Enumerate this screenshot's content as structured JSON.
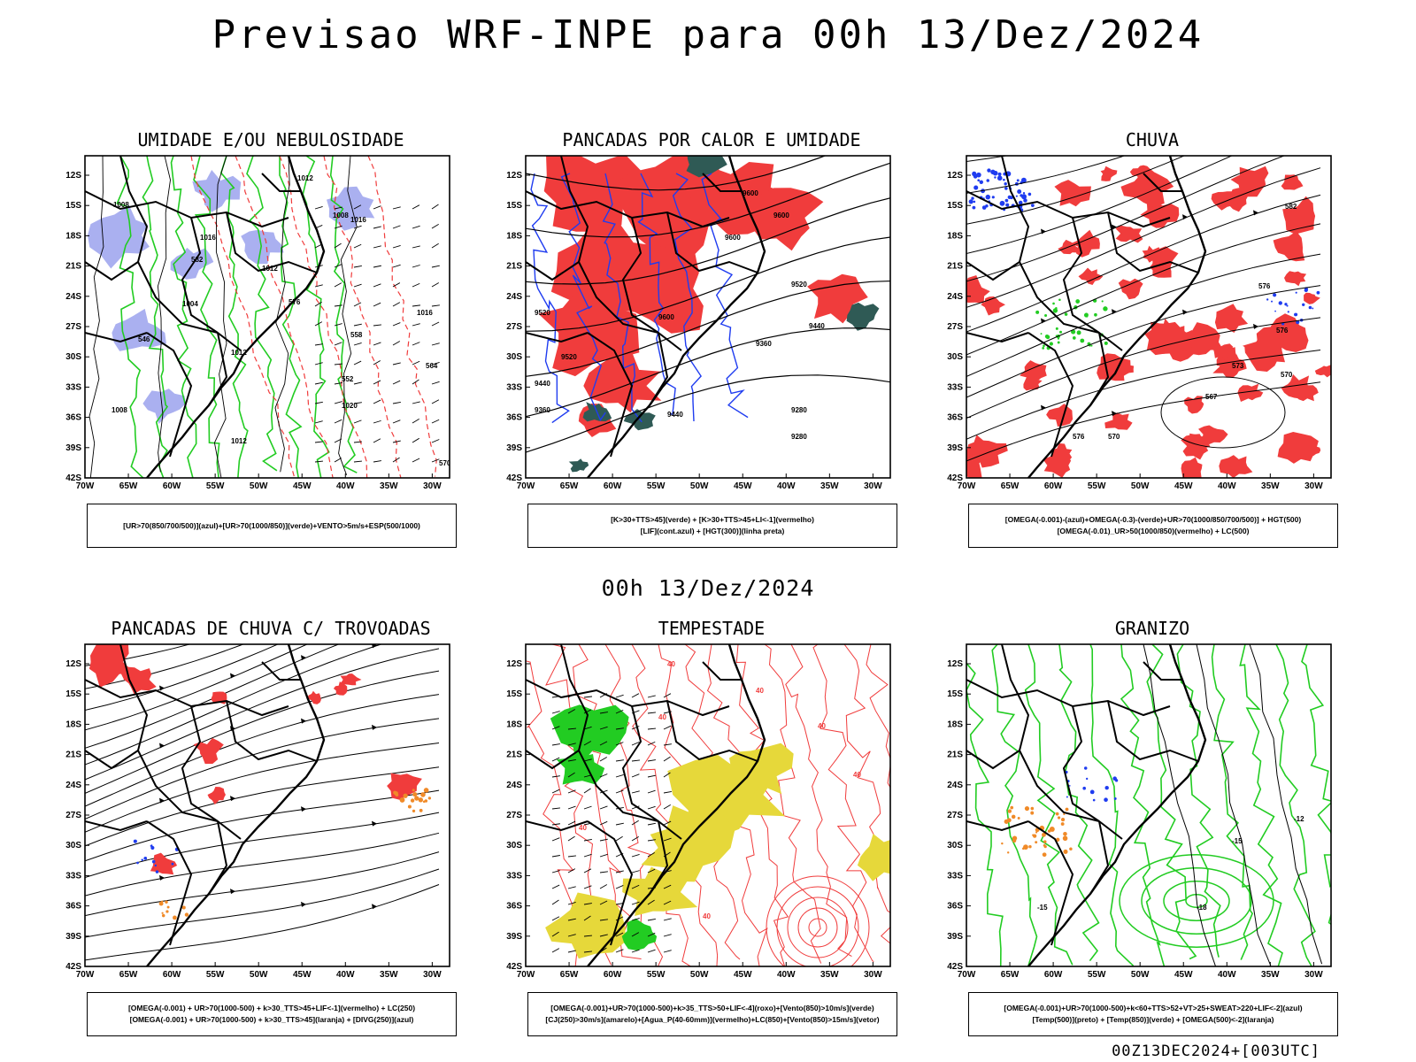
{
  "title": "Previsao WRF-INPE  para 00h 13/Dez/2024",
  "mid_date": "00h 13/Dez/2024",
  "footer": "00Z13DEC2024+[003UTC]",
  "axes": {
    "lat_labels": [
      "12S",
      "15S",
      "18S",
      "21S",
      "24S",
      "27S",
      "30S",
      "33S",
      "36S",
      "39S",
      "42S"
    ],
    "lon_labels": [
      "70W",
      "65W",
      "60W",
      "55W",
      "50W",
      "45W",
      "40W",
      "35W",
      "30W"
    ]
  },
  "colors": {
    "red": "#f03c3c",
    "green": "#22cc22",
    "blue": "#1f3cf0",
    "lavender": "#aab0f0",
    "darkgreen": "#2f5a55",
    "yellow": "#e6d83a",
    "orange": "#f08a28",
    "black": "#000000"
  },
  "panels": [
    {
      "id": "umidade",
      "title": "UMIDADE E/OU NEBULOSIDADE",
      "legend": [
        "[UR>70(850/700/500)](azul)+[UR>70(1000/850)](verde)+VENTO>5m/s+ESP(500/1000)"
      ],
      "labels": [
        "1012",
        "1008",
        "1016",
        "1008",
        "1012",
        "1004",
        "1012",
        "1016",
        "1020",
        "1016",
        "1012",
        "1008",
        "564",
        "570",
        "576",
        "558",
        "552",
        "546",
        "582"
      ]
    },
    {
      "id": "pancadas-calor",
      "title": "PANCADAS POR CALOR E UMIDADE",
      "legend": [
        "[K>30+TTS>45](verde) + [K>30+TTS>45+LI<-1](vermelho)",
        "[LIF](cont.azul) + [HGT(300)](linha preta)"
      ],
      "labels": [
        "9600",
        "9600",
        "9600",
        "9600",
        "9520",
        "9520",
        "9520",
        "9440",
        "9440",
        "9360",
        "9280",
        "9280",
        "9360",
        "9440"
      ]
    },
    {
      "id": "chuva",
      "title": "CHUVA",
      "legend": [
        "[OMEGA(-0.001)-(azul)+OMEGA(-0.3)-(verde)+UR>70(1000/850/700/500)] + HGT(500)",
        "[OMEGA(-0.01)_UR>50(1000/850)(vermelho) + LC(500)"
      ],
      "labels": [
        "582",
        "576",
        "576",
        "570",
        "567",
        "576",
        "570",
        "573"
      ]
    },
    {
      "id": "trovoadas",
      "title": "PANCADAS DE CHUVA C/ TROVOADAS",
      "legend": [
        "[OMEGA(-0.001) + UR>70(1000-500) + k>30_TTS>45+LIF<-1](vermelho) + LC(250)",
        "[OMEGA(-0.001) + UR>70(1000-500) + k>30_TTS>45](laranja) + [DIVG(250)](azul)"
      ],
      "labels": []
    },
    {
      "id": "tempestade",
      "title": "TEMPESTADE",
      "legend": [
        "[OMEGA(-0.001)+UR>70(1000-500)+k>35_TTS>50+LIF<-4](roxo)+[Vento(850)>10m/s](verde)",
        "[CJ(250)>30m/s](amarelo)+[Agua_P(40-60mm)](vermelho)+LC(850)+[Vento(850)>15m/s](vetor)"
      ],
      "labels": [
        "40",
        "40",
        "40",
        "40",
        "40",
        "40",
        "40"
      ]
    },
    {
      "id": "granizo",
      "title": "GRANIZO",
      "legend": [
        "[OMEGA(-0.001)+UR>70(1000-500)+k<60+TTS>52+VT>25+SWEAT>220+LIF<-2](azul)",
        "[Temp(500)](preto) + [Temp(850)](verde) + [OMEGA(500)<-2](laranja)"
      ],
      "labels": [
        "-12",
        "-15",
        "-18",
        "-15"
      ]
    }
  ]
}
